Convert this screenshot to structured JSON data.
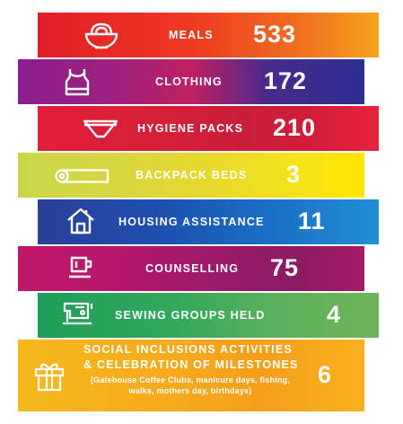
{
  "items": [
    {
      "label": "MEALS",
      "value": "533",
      "icon": "bowl-of-noodles-icon"
    },
    {
      "label": "CLOTHING",
      "value": "172",
      "icon": "tank-top-icon"
    },
    {
      "label": "HYGIENE PACKS",
      "value": "210",
      "icon": "underwear-icon"
    },
    {
      "label": "BACKPACK BEDS",
      "value": "3",
      "icon": "rolled-bed-icon"
    },
    {
      "label": "HOUSING ASSISTANCE",
      "value": "11",
      "icon": "house-icon"
    },
    {
      "label": "COUNSELLING",
      "value": "75",
      "icon": "coffee-cup-icon"
    },
    {
      "label": "SEWING GROUPS HELD",
      "value": "4",
      "icon": "sewing-machine-icon"
    },
    {
      "label_line1": "SOCIAL INCLUSIONS ACTIVITIES",
      "label_line2": "& CELEBRATION OF MILESTONES",
      "note_line1": "(Gatehouse Coffee Clubs, manicure days, fishing,",
      "note_line2": "walks, mothers day, birthdays)",
      "value": "6",
      "icon": "gift-icon"
    }
  ],
  "colors": {
    "meals": "#ef3a22",
    "clothing": "#8a1e8f",
    "hygiene": "#d61f38",
    "backpack": "#e7d92c",
    "housing": "#1d4fae",
    "counselling": "#b5176b",
    "sewing": "#33a85b",
    "social": "#f6a91c"
  }
}
